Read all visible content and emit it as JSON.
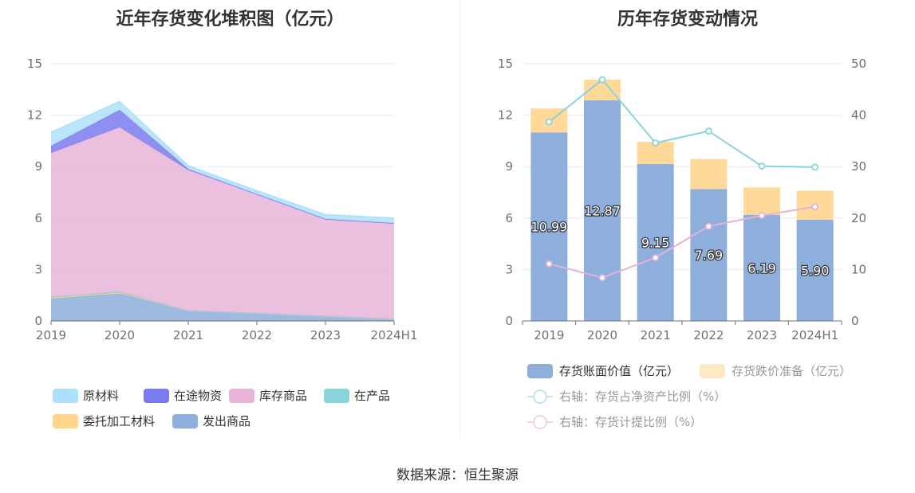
{
  "source": "数据来源：恒生聚源",
  "chart_data": [
    {
      "type": "area",
      "stacked": true,
      "title": "近年存货变化堆积图（亿元）",
      "categories": [
        "2019",
        "2020",
        "2021",
        "2022",
        "2023",
        "2024H1"
      ],
      "ylim": [
        0,
        15
      ],
      "yticks": [
        "0",
        "3",
        "6",
        "9",
        "12",
        "15"
      ],
      "grid": true,
      "legend_position": "bottom",
      "series": [
        {
          "name": "发出商品",
          "color": "#8eaedc",
          "values": [
            1.3,
            1.6,
            0.6,
            0.45,
            0.28,
            0.1
          ]
        },
        {
          "name": "委托加工材料",
          "color": "#ffd68a",
          "values": [
            0.05,
            0.05,
            0.0,
            0.0,
            0.0,
            0.0
          ]
        },
        {
          "name": "在产品",
          "color": "#88d4d8",
          "values": [
            0.05,
            0.05,
            0.0,
            0.0,
            0.0,
            0.0
          ]
        },
        {
          "name": "库存商品",
          "color": "#e8b4d8",
          "values": [
            8.4,
            9.6,
            8.2,
            6.95,
            5.67,
            5.6
          ]
        },
        {
          "name": "在途物资",
          "color": "#7b7bf0",
          "values": [
            0.4,
            1.0,
            0.05,
            0.0,
            0.0,
            0.0
          ]
        },
        {
          "name": "原材料",
          "color": "#aee0fa",
          "values": [
            0.8,
            0.5,
            0.2,
            0.2,
            0.25,
            0.3
          ]
        }
      ],
      "legend_order": [
        "原材料",
        "在途物资",
        "库存商品",
        "在产品",
        "委托加工材料",
        "发出商品"
      ]
    },
    {
      "type": "bar",
      "stacked": true,
      "title": "历年存货变动情况",
      "categories": [
        "2019",
        "2020",
        "2021",
        "2022",
        "2023",
        "2024H1"
      ],
      "ylim": [
        0,
        15
      ],
      "yticks": [
        "0",
        "3",
        "6",
        "9",
        "12",
        "15"
      ],
      "y2lim": [
        0,
        50
      ],
      "y2ticks": [
        "0",
        "10",
        "20",
        "30",
        "40",
        "50"
      ],
      "grid": true,
      "legend_position": "bottom",
      "series": [
        {
          "name": "存货账面价值（亿元）",
          "color": "#8eaedc",
          "values": [
            10.99,
            12.87,
            9.15,
            7.69,
            6.19,
            5.9
          ],
          "labels": [
            "10.99",
            "12.87",
            "9.15",
            "7.69",
            "6.19",
            "5.90"
          ]
        },
        {
          "name": "存货跌价准备（亿元）",
          "color": "#ffd99a",
          "legend_color": "#fde9c5",
          "values": [
            1.4,
            1.2,
            1.3,
            1.75,
            1.6,
            1.7
          ]
        }
      ],
      "line_series": [
        {
          "name": "右轴：存货占净资产比例（%）",
          "color": "#88d4d8",
          "legend_color": "#bfe7ea",
          "values": [
            38.7,
            46.9,
            34.6,
            36.9,
            30.1,
            29.9
          ]
        },
        {
          "name": "右轴：存货计提比例（%）",
          "color": "#e3b1d9",
          "legend_color": "#f1d3ea",
          "values": [
            11.1,
            8.4,
            12.3,
            18.4,
            20.5,
            22.2
          ]
        }
      ]
    }
  ]
}
